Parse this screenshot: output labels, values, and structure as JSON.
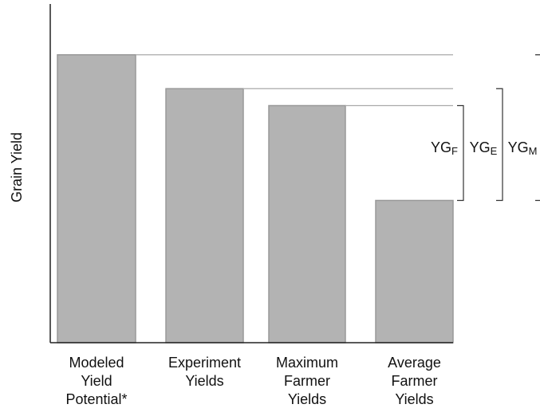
{
  "chart_data": {
    "type": "bar",
    "y_label": "Grain Yield",
    "categories": [
      "Modeled\nYield\nPotential*",
      "Experiment\nYields",
      "Maximum\nFarmer\nYields",
      "Average\nFarmer\nYields"
    ],
    "values": [
      85,
      75,
      70,
      42
    ],
    "color": "#b3b3b3",
    "ylim": [
      0,
      100
    ],
    "annotations": [
      {
        "text": "YG",
        "subscript": "F"
      },
      {
        "text": "YG",
        "subscript": "E"
      },
      {
        "text": "YG",
        "subscript": "M"
      }
    ]
  }
}
